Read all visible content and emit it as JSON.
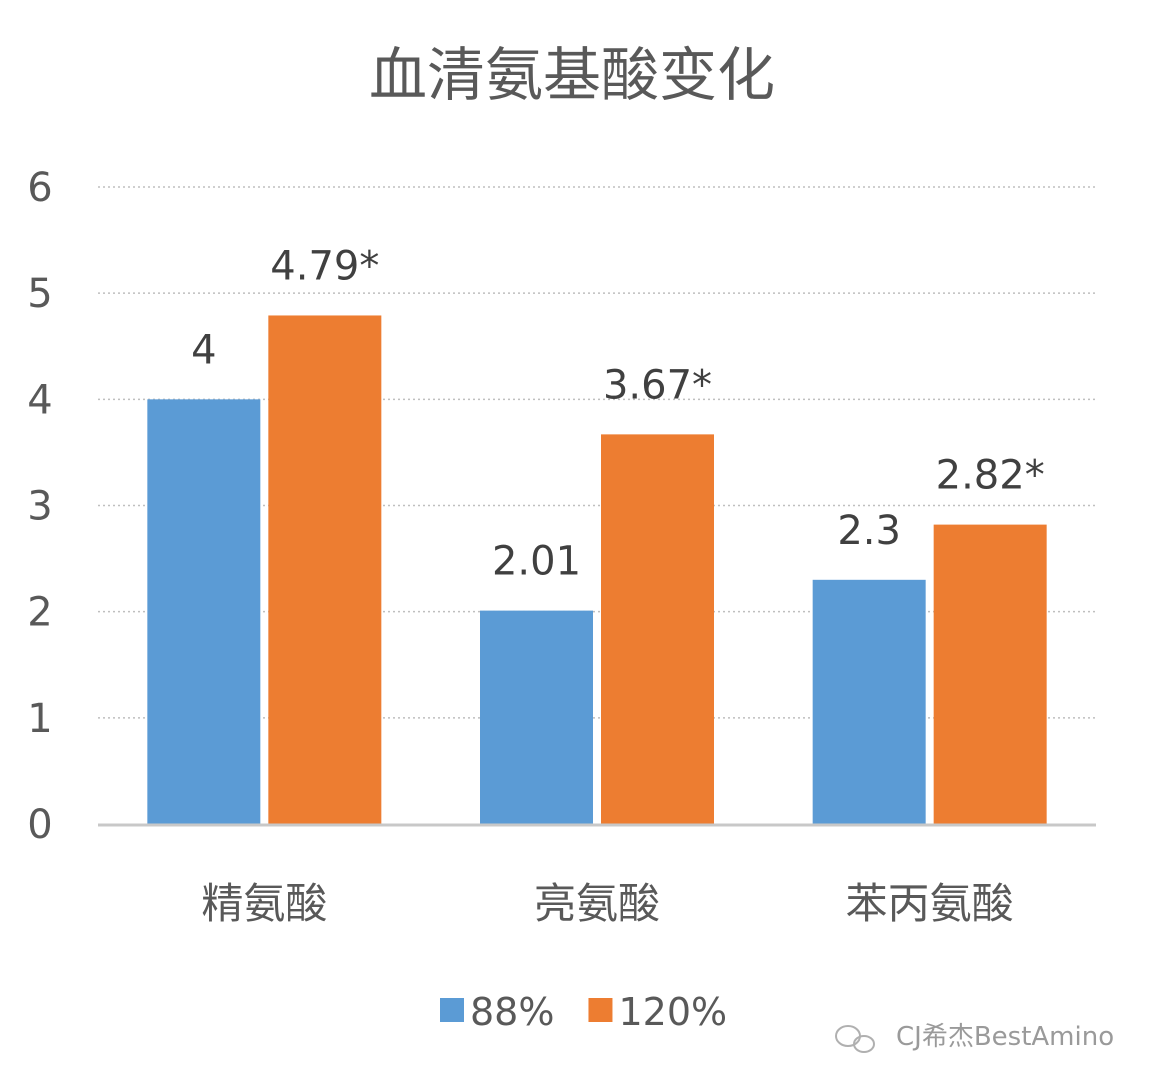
{
  "chart_data": {
    "type": "bar",
    "title": "血清氨基酸变化",
    "categories": [
      "精氨酸",
      "亮氨酸",
      "苯丙氨酸"
    ],
    "series": [
      {
        "name": "88%",
        "values": [
          4,
          2.01,
          2.3
        ],
        "labels": [
          "4",
          "2.01",
          "2.3"
        ],
        "color": "#5B9BD5"
      },
      {
        "name": "120%",
        "values": [
          4.79,
          3.67,
          2.82
        ],
        "labels": [
          "4.79*",
          "3.67*",
          "2.82*"
        ],
        "color": "#ED7D31"
      }
    ],
    "ylim": [
      0,
      6
    ],
    "yticks": [
      0,
      1,
      2,
      3,
      4,
      5,
      6
    ],
    "grid": true,
    "legend_position": "bottom",
    "xlabel": "",
    "ylabel": ""
  },
  "watermark": {
    "text": "CJ希杰BestAmino",
    "icon": "wechat-icon"
  }
}
